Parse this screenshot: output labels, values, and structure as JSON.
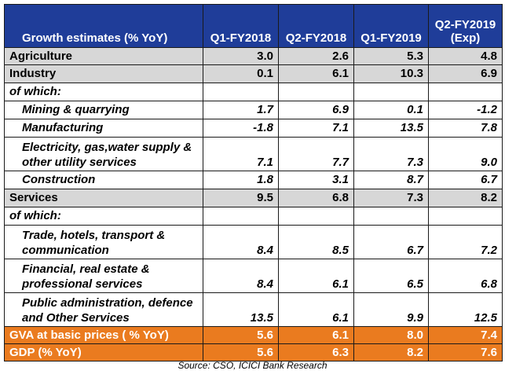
{
  "header": {
    "label": "Growth estimates (% YoY)",
    "columns": [
      {
        "line1": "Q1-FY2018",
        "line2": ""
      },
      {
        "line1": "Q2-FY2018",
        "line2": ""
      },
      {
        "line1": "Q1-FY2019",
        "line2": ""
      },
      {
        "line1": "Q2-FY2019",
        "line2": "(Exp)"
      }
    ]
  },
  "rows": [
    {
      "label": "Agriculture",
      "values": [
        "3.0",
        "2.6",
        "5.3",
        "4.8"
      ],
      "style": "gray"
    },
    {
      "label": "Industry",
      "values": [
        "0.1",
        "6.1",
        "10.3",
        "6.9"
      ],
      "style": "gray"
    },
    {
      "label": "of which:",
      "values": [
        "",
        "",
        "",
        ""
      ],
      "style": "note"
    },
    {
      "label": "Mining & quarrying",
      "values": [
        "1.7",
        "6.9",
        "0.1",
        "-1.2"
      ],
      "style": "sub"
    },
    {
      "label": "Manufacturing",
      "values": [
        "-1.8",
        "7.1",
        "13.5",
        "7.8"
      ],
      "style": "sub"
    },
    {
      "label": "Electricity, gas,water supply & other utility services",
      "values": [
        "7.1",
        "7.7",
        "7.3",
        "9.0"
      ],
      "style": "sub-tall"
    },
    {
      "label": "Construction",
      "values": [
        "1.8",
        "3.1",
        "8.7",
        "6.7"
      ],
      "style": "sub"
    },
    {
      "label": "Services",
      "values": [
        "9.5",
        "6.8",
        "7.3",
        "8.2"
      ],
      "style": "gray"
    },
    {
      "label": "of which:",
      "values": [
        "",
        "",
        "",
        ""
      ],
      "style": "note"
    },
    {
      "label": "Trade, hotels, transport & communication",
      "values": [
        "8.4",
        "8.5",
        "6.7",
        "7.2"
      ],
      "style": "sub-tall"
    },
    {
      "label": "Financial, real estate & professional services",
      "values": [
        "8.4",
        "6.1",
        "6.5",
        "6.8"
      ],
      "style": "sub-tall"
    },
    {
      "label": "Public administration, defence and Other Services",
      "values": [
        "13.5",
        "6.1",
        "9.9",
        "12.5"
      ],
      "style": "sub-tall"
    },
    {
      "label": "GVA at basic prices ( % YoY)",
      "values": [
        "5.6",
        "6.1",
        "8.0",
        "7.4"
      ],
      "style": "orange"
    },
    {
      "label": "GDP (% YoY)",
      "values": [
        "5.6",
        "6.3",
        "8.2",
        "7.6"
      ],
      "style": "orange"
    }
  ],
  "source": "Source: CSO, ICICI Bank Research",
  "colors": {
    "header_bg": "#1f3d99",
    "gray_row": "#d7d7d7",
    "orange_row": "#ea7b1f"
  }
}
